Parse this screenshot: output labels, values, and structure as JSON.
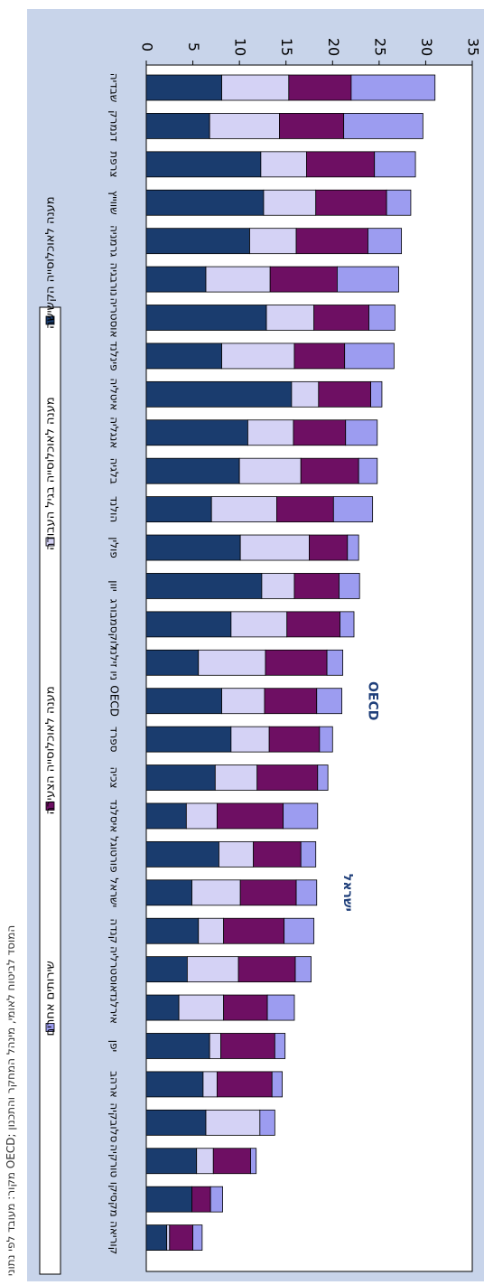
{
  "chart_data": {
    "type": "bar",
    "orientation": "horizontal",
    "stacked": true,
    "ylim": [
      0,
      35
    ],
    "ticks": [
      "0",
      "5",
      "10",
      "15",
      "20",
      "25",
      "30",
      "35"
    ],
    "grid": false,
    "legend_position": "left",
    "colors": [
      "#1a3c6e",
      "#d4d2f5",
      "#6e0f63",
      "#9c9cf0"
    ],
    "background": "#c8d4ea",
    "categories": [
      "שבדיה",
      "דנמרק",
      "צרפת",
      "שווייץ",
      "גרמניה",
      "נורבגיה",
      "אוסטריה",
      "פינלנד",
      "איטליה",
      "אנגליה",
      "בלגיה",
      "הולנד",
      "פולין",
      "יוון",
      "לוקסמבורג",
      "ניו זילנד",
      "OECD",
      "ספרד",
      "צכיה",
      "איסלנד",
      "פורטוגל",
      "ישראל",
      "קנדה",
      "אוסטרליה",
      "אירלנד",
      "יפן",
      "ארהב",
      "סלובקיה",
      "טורקיה",
      "מקסיקו",
      "קוריאה"
    ],
    "highlight_labels": [
      {
        "category": "OECD",
        "text": "OECD"
      },
      {
        "category": "ישראל",
        "text": "ישראל"
      }
    ],
    "series": [
      {
        "name": "מענה לאוכלוסייה הקשישה",
        "values": [
          8.1,
          6.8,
          12.3,
          12.6,
          11.1,
          6.4,
          12.9,
          8.1,
          15.6,
          10.9,
          10.0,
          7.0,
          10.1,
          12.4,
          9.1,
          5.6,
          8.1,
          9.1,
          7.4,
          4.3,
          7.8,
          4.9,
          5.6,
          4.4,
          3.5,
          6.8,
          6.1,
          6.4,
          5.4,
          4.9,
          2.2
        ]
      },
      {
        "name": "מענה לאוכלוסייה בגיל העבודה",
        "values": [
          7.2,
          7.5,
          4.9,
          5.6,
          5.0,
          6.9,
          5.1,
          7.8,
          2.9,
          4.9,
          6.6,
          7.0,
          7.4,
          3.5,
          6.0,
          7.2,
          4.6,
          4.1,
          4.5,
          3.3,
          3.7,
          5.2,
          2.7,
          5.5,
          4.8,
          1.2,
          1.5,
          5.8,
          1.8,
          0.0,
          0.3
        ]
      },
      {
        "name": "מענה לאוכלוסייה הצעירה",
        "values": [
          6.7,
          6.9,
          7.3,
          7.6,
          7.7,
          7.2,
          5.9,
          5.4,
          5.6,
          5.6,
          6.2,
          6.1,
          4.1,
          4.8,
          5.7,
          6.6,
          5.6,
          5.4,
          6.5,
          7.1,
          5.1,
          6.0,
          6.5,
          6.1,
          4.7,
          5.8,
          5.9,
          0.0,
          4.0,
          2.0,
          2.5
        ]
      },
      {
        "name": "שירותים אחרים",
        "values": [
          9.0,
          8.5,
          4.4,
          2.6,
          3.6,
          6.6,
          2.8,
          5.3,
          1.2,
          3.4,
          2.0,
          4.2,
          1.2,
          2.2,
          1.5,
          1.7,
          2.7,
          1.4,
          1.1,
          3.7,
          1.6,
          2.2,
          3.2,
          1.7,
          2.9,
          1.1,
          1.1,
          1.6,
          0.6,
          1.3,
          1.0
        ]
      }
    ]
  },
  "source_note": "מקור: מעובד לפי נתוני OECD; המוסד לביטוח לאומי, מינהל המחקר והתכנון"
}
